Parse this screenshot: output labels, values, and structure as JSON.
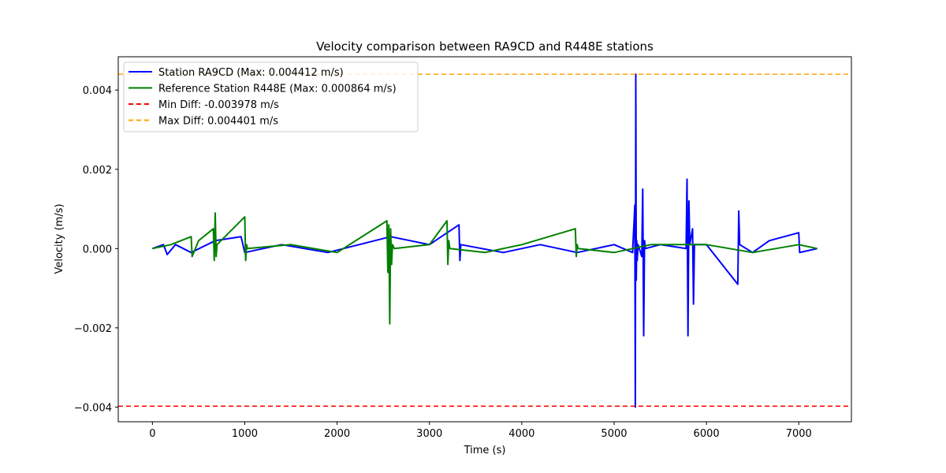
{
  "chart_data": {
    "type": "line",
    "title": "Velocity comparison between RA9CD and R448E stations",
    "xlabel": "Time (s)",
    "ylabel": "Velocity (m/s)",
    "xlim": [
      -370,
      7570
    ],
    "ylim": [
      -0.00437,
      0.00484
    ],
    "xticks": [
      0,
      1000,
      2000,
      3000,
      4000,
      5000,
      6000,
      7000
    ],
    "xtick_labels": [
      "0",
      "1000",
      "2000",
      "3000",
      "4000",
      "5000",
      "6000",
      "7000"
    ],
    "yticks": [
      -0.004,
      -0.002,
      0.0,
      0.002,
      0.004
    ],
    "ytick_labels": [
      "−0.004",
      "−0.002",
      "0.000",
      "0.002",
      "0.004"
    ],
    "grid": false,
    "legend_position": "top-left",
    "colors": {
      "ra9cd": "#0000ff",
      "r448e": "#008000",
      "min_diff": "#ff0000",
      "max_diff": "#ffa500"
    },
    "series": [
      {
        "name": "Station RA9CD (Max: 0.004412 m/s)",
        "x": [
          0,
          120,
          160,
          250,
          420,
          680,
          960,
          1000,
          1400,
          1900,
          2580,
          3000,
          3320,
          3330,
          3340,
          3800,
          4200,
          4600,
          5000,
          5200,
          5225,
          5230,
          5235,
          5240,
          5245,
          5250,
          5260,
          5300,
          5310,
          5320,
          5330,
          5340,
          5500,
          5780,
          5790,
          5800,
          5810,
          5820,
          5850,
          5860,
          5870,
          6000,
          6340,
          6350,
          6360,
          6500,
          6680,
          7000,
          7010,
          7200
        ],
        "values": [
          0.0,
          0.0001,
          -0.00015,
          0.0001,
          -0.0001,
          0.0002,
          0.0003,
          -0.0001,
          0.0001,
          -0.0001,
          0.0003,
          0.0001,
          0.0006,
          -0.0003,
          0.0001,
          -0.0001,
          0.0001,
          -0.0001,
          0.0001,
          -0.0001,
          0.0011,
          -0.004,
          0.0044,
          -0.0008,
          0.0002,
          -0.0003,
          0.0001,
          -0.0002,
          0.0015,
          -0.0022,
          0.0002,
          0.0,
          0.0001,
          0.0,
          0.00175,
          -0.0022,
          0.0012,
          0.0001,
          0.0005,
          -0.0014,
          0.0001,
          0.0001,
          -0.0009,
          0.00095,
          0.0001,
          -0.0001,
          0.0002,
          0.0004,
          -0.0001,
          0.0
        ]
      },
      {
        "name": "Reference Station R448E (Max: 0.000864 m/s)",
        "x": [
          0,
          200,
          420,
          430,
          500,
          660,
          670,
          680,
          690,
          700,
          1000,
          1010,
          1020,
          1030,
          1500,
          2000,
          2540,
          2550,
          2560,
          2570,
          2580,
          2590,
          2600,
          2620,
          3000,
          3190,
          3200,
          3210,
          3220,
          3600,
          4000,
          4580,
          4590,
          4600,
          4610,
          5000,
          5400,
          6000,
          6500,
          7000,
          7200
        ],
        "values": [
          0.0,
          0.0001,
          0.0003,
          -0.0002,
          0.0002,
          0.0005,
          -0.0003,
          0.0009,
          -0.0002,
          0.0001,
          0.0008,
          -0.0003,
          0.0001,
          0.0,
          0.0001,
          -0.0001,
          0.0007,
          -0.0006,
          0.0006,
          -0.0019,
          0.0005,
          -0.0004,
          0.0001,
          0.0,
          0.0001,
          0.0007,
          -0.0004,
          0.0002,
          0.0,
          -0.0001,
          0.0001,
          0.0005,
          -0.0002,
          0.0001,
          0.0,
          -0.0001,
          0.0001,
          0.0001,
          -0.0001,
          0.0001,
          0.0
        ]
      },
      {
        "name": "Min Diff: -0.003978 m/s",
        "hline": -0.003978
      },
      {
        "name": "Max Diff: 0.004401 m/s",
        "hline": 0.004401
      }
    ]
  }
}
